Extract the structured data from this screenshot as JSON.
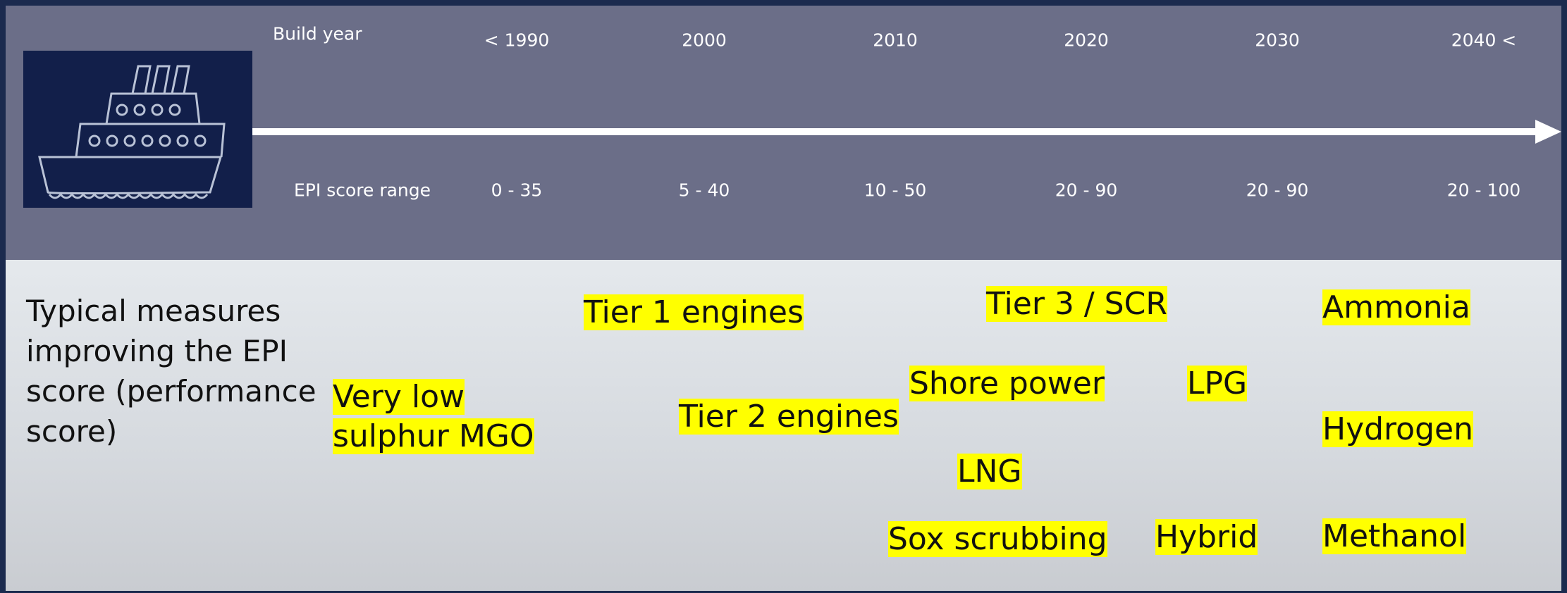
{
  "header": {
    "build_year_label": "Build year",
    "years": [
      "< 1990",
      "2000",
      "2010",
      "2020",
      "2030",
      "2040 <"
    ],
    "epi_label": "EPI score range",
    "epi_ranges": [
      "0 - 35",
      "5 - 40",
      "10 - 50",
      "20 - 90",
      "20 - 90",
      "20 - 100"
    ]
  },
  "body": {
    "heading": "Typical measures improving the EPI score (performance score)",
    "measures": [
      "Very low sulphur MGO",
      "Tier 1 engines",
      "Tier 2 engines",
      "Tier 3 / SCR",
      "Shore power",
      "LNG",
      "Sox scrubbing",
      "LPG",
      "Hybrid",
      "Ammonia",
      "Hydrogen",
      "Methanol"
    ]
  }
}
